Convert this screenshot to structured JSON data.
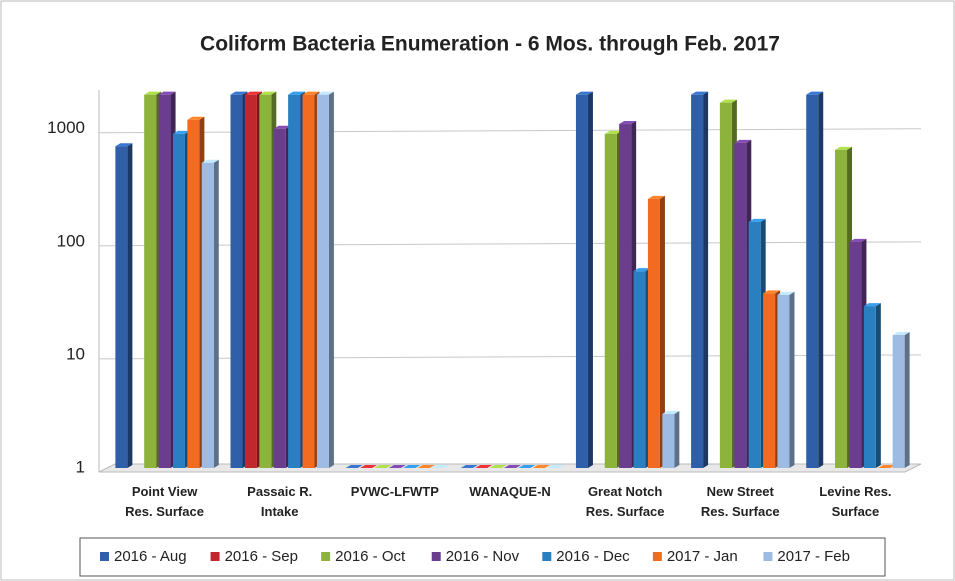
{
  "chart_data": {
    "type": "bar",
    "title": "Coliform Bacteria Enumeration - 6 Mos. through Feb. 2017",
    "categories": [
      "Point View\nRes. Surface",
      "Passaic R.\nIntake",
      "PVWC-LFWTP",
      "WANAQUE-N",
      "Great Notch\nRes. Surface",
      "New Street\nRes. Surface",
      "Levine Res.\nSurface"
    ],
    "series": [
      {
        "name": "2016 - Aug",
        "color": "#2e5fa8",
        "values": [
          700,
          2000,
          1,
          1,
          2000,
          2000,
          2000
        ]
      },
      {
        "name": "2016 - Sep",
        "color": "#c0282d",
        "values": [
          null,
          2000,
          1,
          1,
          null,
          null,
          null
        ]
      },
      {
        "name": "2016 - Oct",
        "color": "#8db33c",
        "values": [
          2000,
          2000,
          1,
          1,
          900,
          1700,
          650
        ]
      },
      {
        "name": "2016 - Nov",
        "color": "#6a3d8f",
        "values": [
          2000,
          1000,
          1,
          1,
          1100,
          750,
          100
        ]
      },
      {
        "name": "2016 - Dec",
        "color": "#2a7fc1",
        "values": [
          900,
          2000,
          1,
          1,
          55,
          150,
          27
        ]
      },
      {
        "name": "2017 - Jan",
        "color": "#f26b21",
        "values": [
          1200,
          2000,
          1,
          1,
          240,
          35,
          1
        ]
      },
      {
        "name": "2017 - Feb",
        "color": "#9dbbe3",
        "values": [
          500,
          2000,
          1,
          1,
          3,
          34,
          15
        ]
      }
    ],
    "log_scale": true,
    "ylim": [
      1,
      2200
    ],
    "yticks": [
      1,
      10,
      100,
      1000
    ],
    "grid": true,
    "legend": "bottom"
  }
}
